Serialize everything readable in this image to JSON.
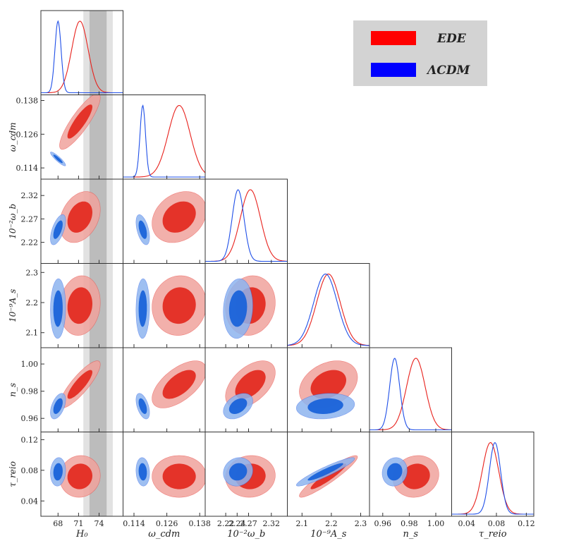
{
  "chart_data": {
    "type": "corner_triangle",
    "title": "",
    "parameters": [
      {
        "key": "H0",
        "xlabel": "H₀",
        "ylabel": "",
        "range": [
          65.5,
          77.5
        ],
        "ticks": [
          68,
          71,
          74
        ],
        "tick_labels": [
          "68",
          "71",
          "74"
        ]
      },
      {
        "key": "omega_cdm",
        "xlabel": "ω_cdm",
        "ylabel": "ω_cdm",
        "range": [
          0.11,
          0.14
        ],
        "ticks": [
          0.114,
          0.126,
          0.138
        ],
        "tick_labels": [
          "0.114",
          "0.126",
          "0.138"
        ],
        "xtick_labels": [
          "0.114",
          "0.126",
          "0.138"
        ]
      },
      {
        "key": "omega_b",
        "xlabel": "10⁻²ω_b",
        "ylabel": "10⁻²ω_b",
        "range": [
          2.175,
          2.355
        ],
        "ticks": [
          2.22,
          2.27,
          2.32
        ],
        "tick_labels": [
          "2.22",
          "2.27",
          "2.32"
        ],
        "xticks": [
          2.22,
          2.245,
          2.27,
          2.32
        ],
        "xtick_labels": [
          "2.22",
          "2.24",
          "2.27",
          "2.32"
        ]
      },
      {
        "key": "A_s",
        "xlabel": "10⁻⁹A_s",
        "ylabel": "10⁻⁹A_s",
        "range": [
          2.05,
          2.33
        ],
        "ticks": [
          2.1,
          2.2,
          2.3
        ],
        "tick_labels": [
          "2.1",
          "2.2",
          "2.3"
        ],
        "xtick_labels": [
          "2.1",
          "2.2",
          "2.3"
        ]
      },
      {
        "key": "n_s",
        "xlabel": "n_s",
        "ylabel": "n_s",
        "range": [
          0.95,
          1.012
        ],
        "ticks": [
          0.96,
          0.98,
          1.0
        ],
        "tick_labels": [
          "0.96",
          "0.98",
          "1.00"
        ],
        "xtick_labels": [
          "0.96",
          "0.98",
          "1.00"
        ]
      },
      {
        "key": "tau_reio",
        "xlabel": "τ_reio",
        "ylabel": "τ_reio",
        "range": [
          0.02,
          0.13
        ],
        "ticks": [
          0.04,
          0.08,
          0.12
        ],
        "tick_labels": [
          "0.04",
          "0.08",
          "0.12"
        ],
        "xtick_labels": [
          "0.04",
          "0.08",
          "0.12"
        ]
      }
    ],
    "series": [
      {
        "name": "EDE",
        "color": "#e8211c",
        "fill_inner": "#e32c22",
        "fill_outer": "#f0a29c",
        "means": [
          71.2,
          0.1305,
          2.274,
          2.19,
          0.985,
          0.072
        ],
        "sigmas": [
          1.2,
          0.004,
          0.022,
          0.04,
          0.007,
          0.011
        ],
        "correlations": [
          {
            "pair": [
              0,
              1
            ],
            "rho": 0.86
          },
          {
            "pair": [
              0,
              2
            ],
            "rho": 0.3
          },
          {
            "pair": [
              0,
              3
            ],
            "rho": 0.1
          },
          {
            "pair": [
              0,
              4
            ],
            "rho": 0.85
          },
          {
            "pair": [
              0,
              5
            ],
            "rho": 0.05
          },
          {
            "pair": [
              1,
              2
            ],
            "rho": 0.25
          },
          {
            "pair": [
              1,
              3
            ],
            "rho": 0.05
          },
          {
            "pair": [
              1,
              4
            ],
            "rho": 0.6
          },
          {
            "pair": [
              1,
              5
            ],
            "rho": 0.0
          },
          {
            "pair": [
              2,
              3
            ],
            "rho": 0.1
          },
          {
            "pair": [
              2,
              4
            ],
            "rho": 0.5
          },
          {
            "pair": [
              2,
              5
            ],
            "rho": 0.05
          },
          {
            "pair": [
              3,
              4
            ],
            "rho": 0.3
          },
          {
            "pair": [
              3,
              5
            ],
            "rho": 0.93
          },
          {
            "pair": [
              4,
              5
            ],
            "rho": 0.1
          }
        ]
      },
      {
        "name": "ΛCDM",
        "color": "#1f4fe8",
        "fill_inner": "#1a63d9",
        "fill_outer": "#8db4ee",
        "means": [
          68.0,
          0.1172,
          2.247,
          2.18,
          0.969,
          0.078
        ],
        "sigmas": [
          0.45,
          0.001,
          0.013,
          0.04,
          0.0038,
          0.0075
        ],
        "correlations": [
          {
            "pair": [
              0,
              1
            ],
            "rho": -0.9
          },
          {
            "pair": [
              0,
              2
            ],
            "rho": 0.6
          },
          {
            "pair": [
              0,
              3
            ],
            "rho": 0.05
          },
          {
            "pair": [
              0,
              4
            ],
            "rho": 0.5
          },
          {
            "pair": [
              0,
              5
            ],
            "rho": 0.1
          },
          {
            "pair": [
              1,
              2
            ],
            "rho": -0.5
          },
          {
            "pair": [
              1,
              3
            ],
            "rho": 0.05
          },
          {
            "pair": [
              1,
              4
            ],
            "rho": -0.5
          },
          {
            "pair": [
              1,
              5
            ],
            "rho": -0.1
          },
          {
            "pair": [
              2,
              3
            ],
            "rho": 0.1
          },
          {
            "pair": [
              2,
              4
            ],
            "rho": 0.4
          },
          {
            "pair": [
              2,
              5
            ],
            "rho": 0.1
          },
          {
            "pair": [
              3,
              4
            ],
            "rho": 0.15
          },
          {
            "pair": [
              3,
              5
            ],
            "rho": 0.93
          },
          {
            "pair": [
              4,
              5
            ],
            "rho": 0.1
          }
        ]
      }
    ],
    "h0_bands": [
      {
        "range": [
          71.7,
          76.0
        ],
        "color": "#e2e2e2"
      },
      {
        "range": [
          72.6,
          75.1
        ],
        "color": "#bcbcbc"
      }
    ],
    "legend": {
      "placement": "top-right",
      "entries": [
        {
          "label": "EDE",
          "color": "#ff0000"
        },
        {
          "label": "ΛCDM",
          "color": "#0000ff"
        }
      ],
      "background": "#d3d3d3"
    }
  }
}
